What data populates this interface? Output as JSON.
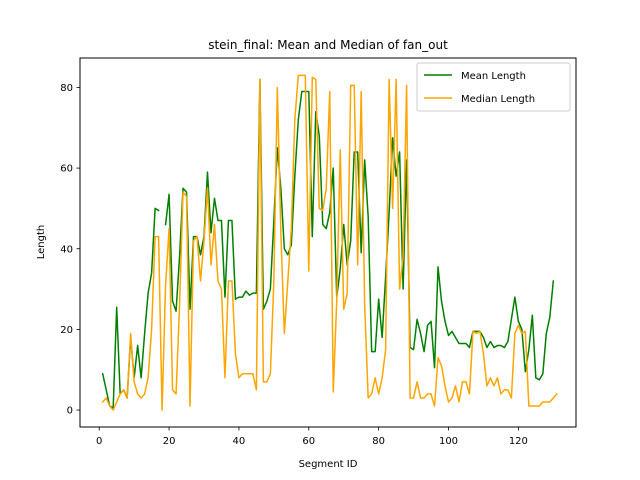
{
  "chart_data": {
    "type": "line",
    "title": "stein_final: Mean and Median of fan_out",
    "xlabel": "Segment ID",
    "ylabel": "Length",
    "xlim": [
      -5.5,
      136.5
    ],
    "ylim": [
      -4.2,
      87.3
    ],
    "xticks": [
      0,
      20,
      40,
      60,
      80,
      100,
      120
    ],
    "yticks": [
      0,
      20,
      40,
      60,
      80
    ],
    "legend_position": "top-right",
    "series": [
      {
        "name": "Mean Length",
        "color": "#008000",
        "points": [
          [
            1,
            9
          ],
          [
            2,
            5
          ],
          [
            3,
            1
          ],
          [
            4,
            0.5
          ],
          [
            5,
            25.5
          ],
          [
            6,
            4
          ],
          [
            7,
            5
          ],
          [
            8,
            3
          ],
          [
            9,
            18
          ],
          [
            10,
            8
          ],
          [
            11,
            16
          ],
          [
            12,
            8
          ],
          [
            13,
            19
          ],
          [
            14,
            29
          ],
          [
            15,
            34
          ],
          [
            16,
            50
          ],
          [
            17,
            49.5
          ],
          [
            18,
            null
          ],
          [
            19,
            46
          ],
          [
            20,
            53.5
          ],
          [
            21,
            27
          ],
          [
            22,
            24.5
          ],
          [
            23,
            38
          ],
          [
            24,
            55
          ],
          [
            25,
            54
          ],
          [
            26,
            25
          ],
          [
            27,
            43
          ],
          [
            28,
            43
          ],
          [
            29,
            38.5
          ],
          [
            30,
            43
          ],
          [
            31,
            59
          ],
          [
            32,
            44
          ],
          [
            33,
            52.5
          ],
          [
            34,
            47
          ],
          [
            35,
            47
          ],
          [
            36,
            28
          ],
          [
            37,
            47
          ],
          [
            38,
            47
          ],
          [
            39,
            27.5
          ],
          [
            40,
            28
          ],
          [
            41,
            28
          ],
          [
            42,
            29.5
          ],
          [
            43,
            28.5
          ],
          [
            44,
            29
          ],
          [
            45,
            29
          ],
          [
            46,
            82
          ],
          [
            47,
            25
          ],
          [
            48,
            27
          ],
          [
            49,
            30
          ],
          [
            50,
            47
          ],
          [
            51,
            65
          ],
          [
            52,
            55
          ],
          [
            53,
            40
          ],
          [
            54,
            38.5
          ],
          [
            55,
            41
          ],
          [
            56,
            58
          ],
          [
            57,
            72
          ],
          [
            58,
            79
          ],
          [
            59,
            79
          ],
          [
            60,
            79
          ],
          [
            61,
            43
          ],
          [
            62,
            74
          ],
          [
            63,
            68
          ],
          [
            64,
            46
          ],
          [
            65,
            45
          ],
          [
            66,
            49
          ],
          [
            67,
            60
          ],
          [
            68,
            28
          ],
          [
            69,
            35
          ],
          [
            70,
            46
          ],
          [
            71,
            36
          ],
          [
            72,
            42
          ],
          [
            73,
            64
          ],
          [
            74,
            64
          ],
          [
            75,
            39
          ],
          [
            76,
            62
          ],
          [
            77,
            48
          ],
          [
            78,
            14.5
          ],
          [
            79,
            14.5
          ],
          [
            80,
            27.5
          ],
          [
            81,
            18
          ],
          [
            82,
            33
          ],
          [
            83,
            49
          ],
          [
            84,
            67.5
          ],
          [
            85,
            58
          ],
          [
            86,
            64
          ],
          [
            87,
            30
          ],
          [
            88,
            62
          ],
          [
            89,
            15.5
          ],
          [
            90,
            15
          ],
          [
            91,
            22.5
          ],
          [
            92,
            19
          ],
          [
            93,
            14.5
          ],
          [
            94,
            21
          ],
          [
            95,
            22
          ],
          [
            96,
            10.5
          ],
          [
            97,
            35.5
          ],
          [
            98,
            27
          ],
          [
            99,
            22
          ],
          [
            100,
            18.5
          ],
          [
            101,
            19.5
          ],
          [
            102,
            18
          ],
          [
            103,
            16.5
          ],
          [
            104,
            16.5
          ],
          [
            105,
            16.5
          ],
          [
            106,
            15.5
          ],
          [
            107,
            19.5
          ],
          [
            108,
            19.5
          ],
          [
            109,
            19.5
          ],
          [
            110,
            18
          ],
          [
            111,
            15.5
          ],
          [
            112,
            17
          ],
          [
            113,
            15.5
          ],
          [
            114,
            16
          ],
          [
            115,
            16
          ],
          [
            116,
            15.5
          ],
          [
            117,
            17
          ],
          [
            118,
            22.5
          ],
          [
            119,
            28
          ],
          [
            120,
            22
          ],
          [
            121,
            20
          ],
          [
            122,
            9.5
          ],
          [
            123,
            15
          ],
          [
            124,
            23.5
          ],
          [
            125,
            8
          ],
          [
            126,
            7.5
          ],
          [
            127,
            9
          ],
          [
            128,
            19
          ],
          [
            129,
            23
          ],
          [
            130,
            32
          ]
        ]
      },
      {
        "name": "Median Length",
        "color": "#ffa500",
        "points": [
          [
            1,
            2
          ],
          [
            2,
            3
          ],
          [
            3,
            1
          ],
          [
            4,
            0
          ],
          [
            5,
            2
          ],
          [
            6,
            4
          ],
          [
            7,
            5
          ],
          [
            8,
            3
          ],
          [
            9,
            19
          ],
          [
            10,
            7
          ],
          [
            11,
            4
          ],
          [
            12,
            3
          ],
          [
            13,
            4
          ],
          [
            14,
            8
          ],
          [
            15,
            20
          ],
          [
            16,
            43
          ],
          [
            17,
            43
          ],
          [
            18,
            0
          ],
          [
            19,
            31
          ],
          [
            20,
            45
          ],
          [
            21,
            5
          ],
          [
            22,
            4
          ],
          [
            23,
            26
          ],
          [
            24,
            54
          ],
          [
            25,
            53
          ],
          [
            26,
            1
          ],
          [
            27,
            42
          ],
          [
            28,
            43
          ],
          [
            29,
            32
          ],
          [
            30,
            42
          ],
          [
            31,
            55
          ],
          [
            32,
            36
          ],
          [
            33,
            46
          ],
          [
            34,
            32
          ],
          [
            35,
            30
          ],
          [
            36,
            8
          ],
          [
            37,
            32
          ],
          [
            38,
            32
          ],
          [
            39,
            14
          ],
          [
            40,
            8
          ],
          [
            41,
            9
          ],
          [
            42,
            9
          ],
          [
            43,
            9
          ],
          [
            44,
            9
          ],
          [
            45,
            5
          ],
          [
            46,
            82
          ],
          [
            47,
            7
          ],
          [
            48,
            7
          ],
          [
            49,
            9
          ],
          [
            50,
            32
          ],
          [
            51,
            80
          ],
          [
            52,
            44
          ],
          [
            53,
            19
          ],
          [
            54,
            32
          ],
          [
            55,
            45
          ],
          [
            56,
            72
          ],
          [
            57,
            83
          ],
          [
            58,
            83
          ],
          [
            59,
            83
          ],
          [
            60,
            34.5
          ],
          [
            61,
            82.5
          ],
          [
            62,
            82
          ],
          [
            63,
            50
          ],
          [
            64,
            49.5
          ],
          [
            65,
            55
          ],
          [
            66,
            79
          ],
          [
            67,
            4.5
          ],
          [
            68,
            27
          ],
          [
            69,
            64.5
          ],
          [
            70,
            25
          ],
          [
            71,
            29
          ],
          [
            72,
            80.5
          ],
          [
            73,
            80.5
          ],
          [
            74,
            36
          ],
          [
            75,
            79
          ],
          [
            76,
            26
          ],
          [
            77,
            3
          ],
          [
            78,
            4
          ],
          [
            79,
            8
          ],
          [
            80,
            4
          ],
          [
            81,
            8
          ],
          [
            82,
            15
          ],
          [
            83,
            82
          ],
          [
            84,
            50
          ],
          [
            85,
            82
          ],
          [
            86,
            30
          ],
          [
            87,
            38
          ],
          [
            88,
            80.5
          ],
          [
            89,
            3
          ],
          [
            90,
            3
          ],
          [
            91,
            7
          ],
          [
            92,
            3
          ],
          [
            93,
            3
          ],
          [
            94,
            4
          ],
          [
            95,
            4
          ],
          [
            96,
            1
          ],
          [
            97,
            13
          ],
          [
            98,
            11
          ],
          [
            99,
            6
          ],
          [
            100,
            2
          ],
          [
            101,
            3
          ],
          [
            102,
            6
          ],
          [
            103,
            2
          ],
          [
            104,
            7
          ],
          [
            105,
            7
          ],
          [
            106,
            4
          ],
          [
            107,
            19.5
          ],
          [
            108,
            19
          ],
          [
            109,
            19.5
          ],
          [
            110,
            14
          ],
          [
            111,
            6
          ],
          [
            112,
            8
          ],
          [
            113,
            6
          ],
          [
            114,
            8
          ],
          [
            115,
            4
          ],
          [
            116,
            5
          ],
          [
            117,
            5
          ],
          [
            118,
            3
          ],
          [
            119,
            19
          ],
          [
            120,
            21
          ],
          [
            121,
            19
          ],
          [
            122,
            19.5
          ],
          [
            123,
            1
          ],
          [
            124,
            1
          ],
          [
            125,
            1
          ],
          [
            126,
            1
          ],
          [
            127,
            2
          ],
          [
            128,
            2
          ],
          [
            129,
            2
          ],
          [
            130,
            3
          ],
          [
            131,
            4
          ]
        ]
      }
    ]
  }
}
